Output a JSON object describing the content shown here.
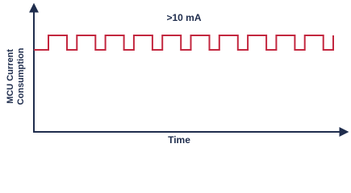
{
  "annotation": ">10 mA",
  "y_axis_label": [
    "MCU Current",
    "Consumption"
  ],
  "x_axis_label": "Time"
}
